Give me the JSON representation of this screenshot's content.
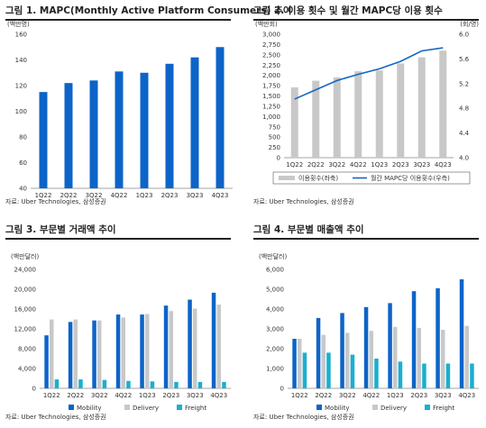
{
  "colors": {
    "blue": "#0D64C8",
    "gray": "#C8C8C8",
    "teal": "#1AAFD0",
    "line": "#1566C0"
  },
  "panels": [
    {
      "title": "그림 1. MAPC(Monthly Active Platform Consumers) 추이",
      "source": "자료: Uber Technologies, 삼성증권"
    },
    {
      "title": "그림 2. 이용 횟수 및 월간 MAPC당 이용 횟수",
      "source": "자료: Uber Technologies, 삼성증권"
    },
    {
      "title": "그림 3. 부문별 거래액 추이",
      "source": "자료: Uber Technologies, 삼성증권"
    },
    {
      "title": "그림 4. 부문별 매출액 추이",
      "source": "자료: Uber Technologies, 삼성증권"
    }
  ],
  "chart_data": [
    {
      "type": "bar",
      "title": "그림 1. MAPC(Monthly Active Platform Consumers) 추이",
      "unit": "(백만명)",
      "categories": [
        "1Q22",
        "2Q22",
        "3Q22",
        "4Q22",
        "1Q23",
        "2Q23",
        "3Q23",
        "4Q23"
      ],
      "values": [
        115,
        122,
        124,
        131,
        130,
        137,
        142,
        150
      ],
      "ylim": [
        40,
        160
      ],
      "yticks": [
        40,
        60,
        80,
        100,
        120,
        140,
        160
      ],
      "grid": false
    },
    {
      "type": "bar",
      "title": "그림 2. 이용 횟수 및 월간 MAPC당 이용 횟수",
      "unit_left": "(백만회)",
      "unit_right": "(회/명)",
      "categories": [
        "1Q22",
        "2Q22",
        "3Q22",
        "4Q22",
        "1Q23",
        "2Q23",
        "3Q23",
        "4Q23"
      ],
      "series": [
        {
          "name": "이용횟수(좌축)",
          "type": "bar",
          "axis": "left",
          "values": [
            1710,
            1870,
            1950,
            2100,
            2120,
            2290,
            2440,
            2600
          ]
        },
        {
          "name": "월간 MAPC당 이용횟수(우측)",
          "type": "line",
          "axis": "right",
          "values": [
            4.95,
            5.1,
            5.25,
            5.35,
            5.44,
            5.56,
            5.73,
            5.78
          ]
        }
      ],
      "ylim": [
        0,
        3000
      ],
      "yticks": [
        0,
        250,
        500,
        750,
        1000,
        1250,
        1500,
        1750,
        2000,
        2250,
        2500,
        2750,
        3000
      ],
      "y2lim": [
        4.0,
        6.0
      ],
      "y2ticks": [
        "4.0",
        "4.4",
        "4.8",
        "5.2",
        "5.6",
        "6.0"
      ],
      "legend": "bottom",
      "grid": false
    },
    {
      "type": "bar",
      "title": "그림 3. 부문별 거래액 추이",
      "unit": "(백만달러)",
      "categories": [
        "1Q22",
        "2Q22",
        "3Q22",
        "4Q22",
        "1Q23",
        "2Q23",
        "3Q23",
        "4Q23"
      ],
      "series": [
        {
          "name": "Mobility",
          "values": [
            10700,
            13400,
            13700,
            14900,
            14900,
            16700,
            17900,
            19300
          ]
        },
        {
          "name": "Delivery",
          "values": [
            13900,
            13900,
            13700,
            14300,
            15000,
            15600,
            16100,
            16900
          ]
        },
        {
          "name": "Freight",
          "values": [
            1800,
            1800,
            1700,
            1500,
            1400,
            1300,
            1300,
            1300
          ]
        }
      ],
      "ylim": [
        0,
        24000
      ],
      "yticks": [
        "0",
        "4,000",
        "8,000",
        "12,000",
        "16,000",
        "20,000",
        "24,000"
      ],
      "legend": "bottom",
      "grid": false
    },
    {
      "type": "bar",
      "title": "그림 4. 부문별 매출액 추이",
      "unit": "(백만달러)",
      "categories": [
        "1Q22",
        "2Q22",
        "3Q22",
        "4Q22",
        "1Q23",
        "2Q23",
        "3Q23",
        "4Q23"
      ],
      "series": [
        {
          "name": "Mobility",
          "values": [
            2500,
            3550,
            3800,
            4100,
            4300,
            4900,
            5050,
            5500
          ]
        },
        {
          "name": "Delivery",
          "values": [
            2500,
            2700,
            2800,
            2900,
            3100,
            3050,
            2950,
            3150
          ]
        },
        {
          "name": "Freight",
          "values": [
            1800,
            1800,
            1700,
            1500,
            1350,
            1250,
            1250,
            1250
          ]
        }
      ],
      "ylim": [
        0,
        6000
      ],
      "yticks": [
        "0",
        "1,000",
        "2,000",
        "3,000",
        "4,000",
        "5,000",
        "6,000"
      ],
      "legend": "bottom",
      "grid": false
    }
  ]
}
